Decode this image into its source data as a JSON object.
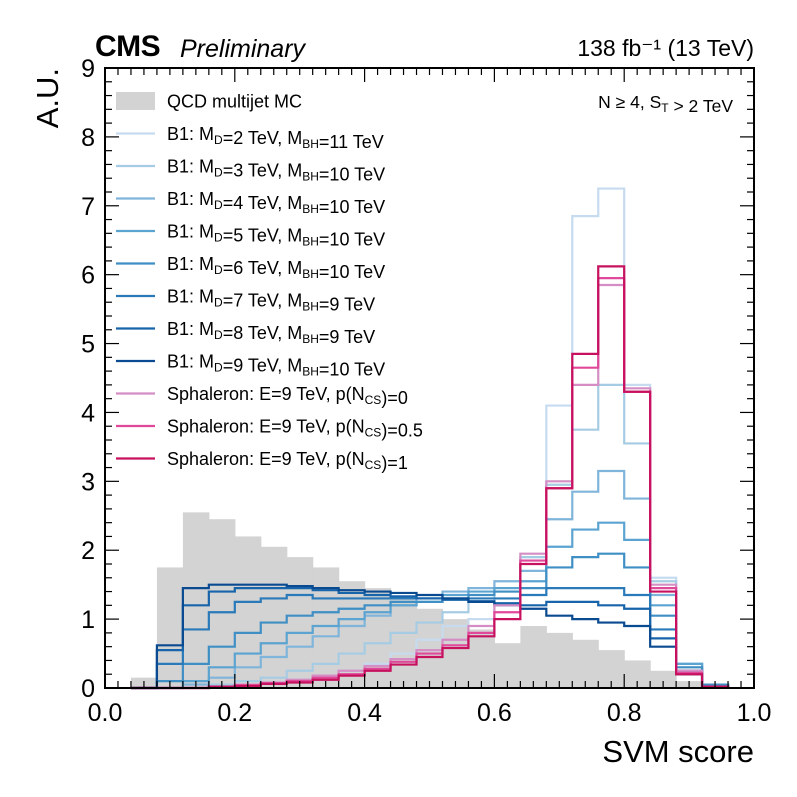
{
  "header": {
    "experiment": "CMS",
    "status": "Preliminary",
    "luminosity": "138 fb⁻¹ (13 TeV)"
  },
  "chart_data": {
    "type": "step-histogram",
    "xlabel": "SVM score",
    "ylabel": "A.U.",
    "xlim": [
      0.0,
      1.0
    ],
    "ylim": [
      0,
      9
    ],
    "xticks": [
      "0.0",
      "0.2",
      "0.4",
      "0.6",
      "0.8",
      "1.0"
    ],
    "yticks": [
      "0",
      "1",
      "2",
      "3",
      "4",
      "5",
      "6",
      "7",
      "8",
      "9"
    ],
    "bin_edges": [
      0.04,
      0.08,
      0.12,
      0.16,
      0.2,
      0.24,
      0.28,
      0.32,
      0.36,
      0.4,
      0.44,
      0.48,
      0.52,
      0.56,
      0.6,
      0.64,
      0.68,
      0.72,
      0.76,
      0.8,
      0.84,
      0.88,
      0.92,
      0.96
    ],
    "annotation": "N ≥ 4, S_T > 2 TeV",
    "background": {
      "name": "QCD multijet MC",
      "color": "#d3d3d3",
      "values": [
        0.15,
        1.75,
        2.55,
        2.45,
        2.2,
        2.05,
        1.9,
        1.75,
        1.55,
        1.45,
        1.3,
        1.15,
        1.0,
        0.85,
        0.65,
        0.9,
        0.8,
        0.7,
        0.55,
        0.4,
        0.25,
        0.1,
        0.0
      ]
    },
    "series": [
      {
        "name": "B1: M_D=2 TeV, M_BH=11 TeV",
        "color": "#c6dbef",
        "values": [
          0,
          0,
          0,
          0.02,
          0.05,
          0.08,
          0.12,
          0.18,
          0.25,
          0.35,
          0.5,
          0.7,
          0.9,
          1.0,
          1.2,
          1.9,
          4.1,
          6.85,
          7.25,
          4.4,
          1.6,
          0.3,
          0.05
        ]
      },
      {
        "name": "B1: M_D=3 TeV, M_BH=10 TeV",
        "color": "#a6cce4",
        "values": [
          0,
          0,
          0,
          0.05,
          0.1,
          0.15,
          0.25,
          0.35,
          0.5,
          0.65,
          0.8,
          0.95,
          1.1,
          1.25,
          1.4,
          1.9,
          2.95,
          3.75,
          4.4,
          3.55,
          1.55,
          0.35,
          0.05
        ]
      },
      {
        "name": "B1: M_D=4 TeV, M_BH=10 TeV",
        "color": "#7fb4db",
        "values": [
          0,
          0,
          0.05,
          0.15,
          0.3,
          0.45,
          0.6,
          0.75,
          0.9,
          1.05,
          1.2,
          1.3,
          1.4,
          1.45,
          1.55,
          1.7,
          2.45,
          2.85,
          3.15,
          2.75,
          1.35,
          0.35,
          0.05
        ]
      },
      {
        "name": "B1: M_D=5 TeV, M_BH=10 TeV",
        "color": "#5ba3d0",
        "values": [
          0,
          0,
          0.1,
          0.3,
          0.5,
          0.65,
          0.8,
          0.9,
          1.0,
          1.1,
          1.2,
          1.25,
          1.35,
          1.4,
          1.45,
          1.55,
          2.05,
          2.3,
          2.4,
          2.15,
          1.2,
          0.35,
          0.05
        ]
      },
      {
        "name": "B1: M_D=6 TeV, M_BH=10 TeV",
        "color": "#3f8fc5",
        "values": [
          0,
          0.1,
          0.35,
          0.6,
          0.8,
          0.95,
          1.05,
          1.1,
          1.15,
          1.2,
          1.25,
          1.25,
          1.3,
          1.35,
          1.4,
          1.45,
          1.75,
          1.9,
          1.95,
          1.75,
          1.05,
          0.3,
          0.05
        ]
      },
      {
        "name": "B1: M_D=7 TeV, M_BH=9 TeV",
        "color": "#2a7ab9",
        "values": [
          0,
          0.35,
          0.85,
          1.1,
          1.25,
          1.3,
          1.35,
          1.3,
          1.3,
          1.3,
          1.3,
          1.3,
          1.3,
          1.3,
          1.3,
          1.35,
          1.45,
          1.45,
          1.45,
          1.35,
          0.85,
          0.25,
          0.02
        ]
      },
      {
        "name": "B1: M_D=8 TeV, M_BH=9 TeV",
        "color": "#1764ab",
        "values": [
          0,
          0.55,
          1.2,
          1.4,
          1.45,
          1.45,
          1.45,
          1.42,
          1.38,
          1.35,
          1.33,
          1.3,
          1.28,
          1.26,
          1.23,
          1.2,
          1.25,
          1.25,
          1.2,
          1.15,
          0.72,
          0.25,
          0.02
        ]
      },
      {
        "name": "B1: M_D=9 TeV, M_BH=10 TeV",
        "color": "#0a4a90",
        "values": [
          0,
          0.62,
          1.45,
          1.5,
          1.5,
          1.5,
          1.48,
          1.45,
          1.42,
          1.4,
          1.38,
          1.35,
          1.3,
          1.25,
          1.2,
          1.15,
          1.05,
          1.0,
          0.95,
          0.9,
          0.6,
          0.2,
          0.02
        ]
      },
      {
        "name": "Sphaleron: E=9 TeV, p(N_CS)=0",
        "color": "#d48ec4",
        "values": [
          0,
          0,
          0,
          0.02,
          0.05,
          0.08,
          0.12,
          0.18,
          0.25,
          0.32,
          0.42,
          0.55,
          0.7,
          0.9,
          1.2,
          1.95,
          3.0,
          4.4,
          5.85,
          4.35,
          1.5,
          0.25,
          0.02
        ]
      },
      {
        "name": "Sphaleron: E=9 TeV, p(N_CS)=0.5",
        "color": "#e0489a",
        "values": [
          0,
          0,
          0,
          0.02,
          0.04,
          0.07,
          0.1,
          0.15,
          0.2,
          0.28,
          0.38,
          0.5,
          0.62,
          0.8,
          1.1,
          1.85,
          2.9,
          4.65,
          5.95,
          4.3,
          1.45,
          0.22,
          0.02
        ]
      },
      {
        "name": "Sphaleron: E=9 TeV, p(N_CS)=1",
        "color": "#c7105e",
        "values": [
          0,
          0,
          0,
          0.02,
          0.03,
          0.06,
          0.08,
          0.12,
          0.18,
          0.25,
          0.34,
          0.45,
          0.58,
          0.75,
          1.0,
          1.8,
          2.9,
          4.85,
          6.12,
          4.3,
          1.4,
          0.2,
          0.02
        ]
      }
    ]
  }
}
